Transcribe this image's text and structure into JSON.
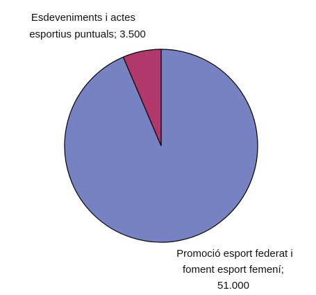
{
  "chart_data": {
    "type": "pie",
    "slices": [
      {
        "value": 51000,
        "label_lines": [
          "Promoció esport federat i",
          "foment esport femení;",
          "51.000"
        ],
        "color": "#7782c2"
      },
      {
        "value": 3500,
        "label_lines": [
          "Esdeveniments i actes",
          "esportius puntuals; 3.500"
        ],
        "color": "#b0386a"
      }
    ],
    "legend": "none",
    "outline_color": "#000000"
  }
}
